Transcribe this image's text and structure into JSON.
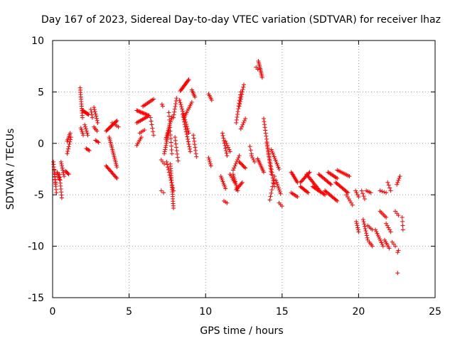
{
  "chart_data": {
    "type": "scatter",
    "title": "Day 167 of 2023, Sidereal Day-to-day VTEC variation (SDTVAR) for receiver lhaz",
    "xlabel": "GPS time / hours",
    "ylabel": "SDTVAR / TECUs",
    "xlim": [
      0,
      25
    ],
    "ylim": [
      -15,
      10
    ],
    "x_ticks": [
      0,
      5,
      10,
      15,
      20,
      25
    ],
    "y_ticks": [
      -15,
      -10,
      -5,
      0,
      5,
      10
    ],
    "x_tick_labels": [
      "0",
      "5",
      "10",
      "15",
      "20",
      "25"
    ],
    "y_tick_labels": [
      "-15",
      "-10",
      "-5",
      "0",
      "5",
      "10"
    ],
    "grid": true,
    "marker": "+",
    "color": "#ff0000",
    "series": [
      {
        "name": "SDTVAR",
        "segments": [
          {
            "x0": 0.05,
            "x1": 0.2,
            "y0": -1.8,
            "y1": -4.0,
            "n": 10
          },
          {
            "x0": 0.1,
            "x1": 0.25,
            "y0": -2.6,
            "y1": -4.8,
            "n": 8
          },
          {
            "x0": 0.3,
            "x1": 0.45,
            "y0": -2.8,
            "y1": -3.5,
            "n": 6
          },
          {
            "x0": 0.45,
            "x1": 0.6,
            "y0": -3.0,
            "y1": -5.3,
            "n": 9
          },
          {
            "x0": 0.55,
            "x1": 0.75,
            "y0": -1.8,
            "y1": -3.2,
            "n": 8
          },
          {
            "x0": 0.85,
            "x1": 1.05,
            "y0": -2.7,
            "y1": -3.0,
            "n": 5
          },
          {
            "x0": 0.95,
            "x1": 1.15,
            "y0": 0.2,
            "y1": 1.0,
            "n": 6
          },
          {
            "x0": 0.95,
            "x1": 1.2,
            "y0": -1.0,
            "y1": 0.6,
            "n": 8
          },
          {
            "x0": 1.8,
            "x1": 1.95,
            "y0": 5.4,
            "y1": 2.5,
            "n": 14
          },
          {
            "x0": 1.85,
            "x1": 2.0,
            "y0": 1.5,
            "y1": 0.8,
            "n": 5
          },
          {
            "x0": 1.95,
            "x1": 2.35,
            "y0": 3.2,
            "y1": 2.8,
            "n": 10
          },
          {
            "x0": 2.1,
            "x1": 2.3,
            "y0": 1.8,
            "y1": 0.8,
            "n": 6
          },
          {
            "x0": 2.2,
            "x1": 2.4,
            "y0": -0.5,
            "y1": -0.7,
            "n": 4
          },
          {
            "x0": 2.5,
            "x1": 2.6,
            "y0": 3.3,
            "y1": 2.5,
            "n": 4
          },
          {
            "x0": 2.7,
            "x1": 2.95,
            "y0": 3.5,
            "y1": 2.0,
            "n": 8
          },
          {
            "x0": 2.7,
            "x1": 2.9,
            "y0": 1.6,
            "y1": 1.2,
            "n": 4
          },
          {
            "x0": 2.8,
            "x1": 3.0,
            "y0": 0.3,
            "y1": 0.1,
            "n": 4
          },
          {
            "x0": 3.5,
            "x1": 4.2,
            "y0": 1.2,
            "y1": 2.2,
            "n": 14
          },
          {
            "x0": 3.5,
            "x1": 4.2,
            "y0": -2.2,
            "y1": -3.4,
            "n": 14
          },
          {
            "x0": 3.7,
            "x1": 4.2,
            "y0": 0.6,
            "y1": -2.3,
            "n": 18
          },
          {
            "x0": 3.9,
            "x1": 4.3,
            "y0": 2.0,
            "y1": 1.6,
            "n": 5
          },
          {
            "x0": 5.5,
            "x1": 6.3,
            "y0": 3.2,
            "y1": 2.7,
            "n": 14
          },
          {
            "x0": 5.5,
            "x1": 6.2,
            "y0": 2.0,
            "y1": 2.6,
            "n": 10
          },
          {
            "x0": 5.5,
            "x1": 5.8,
            "y0": -0.2,
            "y1": 0.6,
            "n": 6
          },
          {
            "x0": 5.9,
            "x1": 6.6,
            "y0": 3.6,
            "y1": 4.3,
            "n": 10
          },
          {
            "x0": 6.4,
            "x1": 6.6,
            "y0": 2.5,
            "y1": 0.8,
            "n": 6
          },
          {
            "x0": 5.7,
            "x1": 6.0,
            "y0": 1.0,
            "y1": 1.3,
            "n": 4
          },
          {
            "x0": 7.15,
            "x1": 7.2,
            "y0": 3.8,
            "y1": 3.6,
            "n": 2
          },
          {
            "x0": 7.1,
            "x1": 7.3,
            "y0": -1.6,
            "y1": -2.0,
            "n": 3
          },
          {
            "x0": 7.1,
            "x1": 7.25,
            "y0": -4.6,
            "y1": -4.8,
            "n": 2
          },
          {
            "x0": 7.3,
            "x1": 7.6,
            "y0": -1.0,
            "y1": 1.2,
            "n": 12
          },
          {
            "x0": 7.4,
            "x1": 7.8,
            "y0": 0.4,
            "y1": 2.6,
            "n": 14
          },
          {
            "x0": 7.6,
            "x1": 7.8,
            "y0": 3.0,
            "y1": -1.0,
            "n": 12
          },
          {
            "x0": 7.7,
            "x1": 7.9,
            "y0": -2.0,
            "y1": -6.3,
            "n": 20
          },
          {
            "x0": 7.45,
            "x1": 7.9,
            "y0": -1.8,
            "y1": -4.6,
            "n": 12
          },
          {
            "x0": 7.9,
            "x1": 8.1,
            "y0": 2.5,
            "y1": 4.4,
            "n": 8
          },
          {
            "x0": 8.0,
            "x1": 8.2,
            "y0": 0.6,
            "y1": -1.7,
            "n": 8
          },
          {
            "x0": 8.3,
            "x1": 8.9,
            "y0": 4.2,
            "y1": 1.0,
            "n": 16
          },
          {
            "x0": 8.35,
            "x1": 8.9,
            "y0": 5.1,
            "y1": 6.2,
            "n": 14
          },
          {
            "x0": 8.5,
            "x1": 9.0,
            "y0": 2.8,
            "y1": -0.8,
            "n": 16
          },
          {
            "x0": 8.6,
            "x1": 9.1,
            "y0": 2.5,
            "y1": 4.0,
            "n": 10
          },
          {
            "x0": 9.1,
            "x1": 9.3,
            "y0": 5.2,
            "y1": 4.5,
            "n": 6
          },
          {
            "x0": 9.2,
            "x1": 9.4,
            "y0": 0.8,
            "y1": -1.3,
            "n": 8
          },
          {
            "x0": 10.2,
            "x1": 10.4,
            "y0": 4.8,
            "y1": 4.2,
            "n": 5
          },
          {
            "x0": 10.2,
            "x1": 10.35,
            "y0": -1.4,
            "y1": -2.2,
            "n": 5
          },
          {
            "x0": 11.1,
            "x1": 11.4,
            "y0": 1.0,
            "y1": -1.2,
            "n": 10
          },
          {
            "x0": 11.0,
            "x1": 11.3,
            "y0": -3.2,
            "y1": -4.4,
            "n": 8
          },
          {
            "x0": 11.2,
            "x1": 11.4,
            "y0": -5.6,
            "y1": -5.8,
            "n": 3
          },
          {
            "x0": 11.3,
            "x1": 11.6,
            "y0": 0.2,
            "y1": -0.8,
            "n": 6
          },
          {
            "x0": 11.6,
            "x1": 11.9,
            "y0": -3.0,
            "y1": -3.8,
            "n": 6
          },
          {
            "x0": 11.8,
            "x1": 12.1,
            "y0": -3.0,
            "y1": -4.6,
            "n": 10
          },
          {
            "x0": 11.8,
            "x1": 12.2,
            "y0": -2.6,
            "y1": -1.2,
            "n": 8
          },
          {
            "x0": 12.0,
            "x1": 12.3,
            "y0": 2.0,
            "y1": 5.0,
            "n": 12
          },
          {
            "x0": 12.0,
            "x1": 12.4,
            "y0": -4.5,
            "y1": -3.8,
            "n": 8
          },
          {
            "x0": 12.2,
            "x1": 12.5,
            "y0": 3.6,
            "y1": 5.7,
            "n": 10
          },
          {
            "x0": 12.2,
            "x1": 12.6,
            "y0": -1.8,
            "y1": -2.4,
            "n": 8
          },
          {
            "x0": 12.3,
            "x1": 12.6,
            "y0": 1.4,
            "y1": 2.4,
            "n": 6
          },
          {
            "x0": 12.9,
            "x1": 13.0,
            "y0": -0.3,
            "y1": -1.0,
            "n": 3
          },
          {
            "x0": 13.0,
            "x1": 13.2,
            "y0": -1.2,
            "y1": -1.8,
            "n": 4
          },
          {
            "x0": 13.3,
            "x1": 13.4,
            "y0": 7.4,
            "y1": 7.2,
            "n": 2
          },
          {
            "x0": 13.45,
            "x1": 13.7,
            "y0": 8.0,
            "y1": 6.4,
            "n": 12
          },
          {
            "x0": 13.4,
            "x1": 13.8,
            "y0": -1.5,
            "y1": -2.8,
            "n": 10
          },
          {
            "x0": 13.8,
            "x1": 14.3,
            "y0": 2.4,
            "y1": -3.0,
            "n": 20
          },
          {
            "x0": 14.0,
            "x1": 14.5,
            "y0": 0.0,
            "y1": -4.2,
            "n": 16
          },
          {
            "x0": 14.2,
            "x1": 14.5,
            "y0": -5.5,
            "y1": -3.2,
            "n": 8
          },
          {
            "x0": 14.3,
            "x1": 14.8,
            "y0": -0.6,
            "y1": -2.5,
            "n": 12
          },
          {
            "x0": 14.6,
            "x1": 14.9,
            "y0": -3.6,
            "y1": -4.9,
            "n": 8
          },
          {
            "x0": 14.8,
            "x1": 15.0,
            "y0": -5.8,
            "y1": -6.1,
            "n": 3
          },
          {
            "x0": 15.6,
            "x1": 16.0,
            "y0": -2.8,
            "y1": -3.8,
            "n": 10
          },
          {
            "x0": 15.6,
            "x1": 16.0,
            "y0": -4.8,
            "y1": -5.2,
            "n": 6
          },
          {
            "x0": 16.2,
            "x1": 16.8,
            "y0": -3.8,
            "y1": -2.8,
            "n": 12
          },
          {
            "x0": 16.2,
            "x1": 16.7,
            "y0": -4.2,
            "y1": -4.8,
            "n": 10
          },
          {
            "x0": 16.6,
            "x1": 17.4,
            "y0": -3.0,
            "y1": -4.5,
            "n": 16
          },
          {
            "x0": 17.0,
            "x1": 17.8,
            "y0": -4.2,
            "y1": -5.0,
            "n": 14
          },
          {
            "x0": 17.4,
            "x1": 18.2,
            "y0": -3.0,
            "y1": -4.0,
            "n": 14
          },
          {
            "x0": 17.8,
            "x1": 18.6,
            "y0": -4.6,
            "y1": -5.6,
            "n": 14
          },
          {
            "x0": 18.0,
            "x1": 18.6,
            "y0": -2.8,
            "y1": -3.4,
            "n": 10
          },
          {
            "x0": 18.5,
            "x1": 19.3,
            "y0": -3.8,
            "y1": -4.8,
            "n": 14
          },
          {
            "x0": 18.6,
            "x1": 19.4,
            "y0": -2.6,
            "y1": -3.2,
            "n": 10
          },
          {
            "x0": 19.2,
            "x1": 19.6,
            "y0": -5.0,
            "y1": -6.0,
            "n": 6
          },
          {
            "x0": 19.8,
            "x1": 20.0,
            "y0": -4.6,
            "y1": -5.2,
            "n": 4
          },
          {
            "x0": 19.85,
            "x1": 20.0,
            "y0": -7.6,
            "y1": -8.6,
            "n": 6
          },
          {
            "x0": 20.2,
            "x1": 20.4,
            "y0": -4.6,
            "y1": -5.4,
            "n": 4
          },
          {
            "x0": 20.3,
            "x1": 20.6,
            "y0": -7.4,
            "y1": -9.4,
            "n": 10
          },
          {
            "x0": 20.5,
            "x1": 20.8,
            "y0": -4.6,
            "y1": -4.8,
            "n": 4
          },
          {
            "x0": 20.6,
            "x1": 20.9,
            "y0": -8.0,
            "y1": -8.4,
            "n": 4
          },
          {
            "x0": 20.7,
            "x1": 20.9,
            "y0": -9.6,
            "y1": -10.0,
            "n": 4
          },
          {
            "x0": 21.1,
            "x1": 21.6,
            "y0": -8.4,
            "y1": -10.0,
            "n": 10
          },
          {
            "x0": 21.4,
            "x1": 21.8,
            "y0": -6.6,
            "y1": -7.2,
            "n": 6
          },
          {
            "x0": 21.4,
            "x1": 21.8,
            "y0": -4.6,
            "y1": -4.8,
            "n": 4
          },
          {
            "x0": 21.7,
            "x1": 22.0,
            "y0": -9.4,
            "y1": -10.2,
            "n": 6
          },
          {
            "x0": 21.8,
            "x1": 22.1,
            "y0": -7.8,
            "y1": -8.6,
            "n": 5
          },
          {
            "x0": 21.9,
            "x1": 22.1,
            "y0": -3.8,
            "y1": -4.6,
            "n": 4
          },
          {
            "x0": 22.2,
            "x1": 22.4,
            "y0": -9.6,
            "y1": -10.0,
            "n": 3
          },
          {
            "x0": 22.4,
            "x1": 22.6,
            "y0": -6.6,
            "y1": -7.0,
            "n": 3
          },
          {
            "x0": 22.5,
            "x1": 22.7,
            "y0": -4.0,
            "y1": -3.2,
            "n": 5
          },
          {
            "x0": 22.55,
            "x1": 22.6,
            "y0": -10.6,
            "y1": -10.4,
            "n": 2
          },
          {
            "x0": 22.55,
            "x1": 22.6,
            "y0": -12.6,
            "y1": -12.6,
            "n": 1
          },
          {
            "x0": 22.85,
            "x1": 22.9,
            "y0": -7.2,
            "y1": -8.4,
            "n": 4
          }
        ]
      }
    ]
  }
}
